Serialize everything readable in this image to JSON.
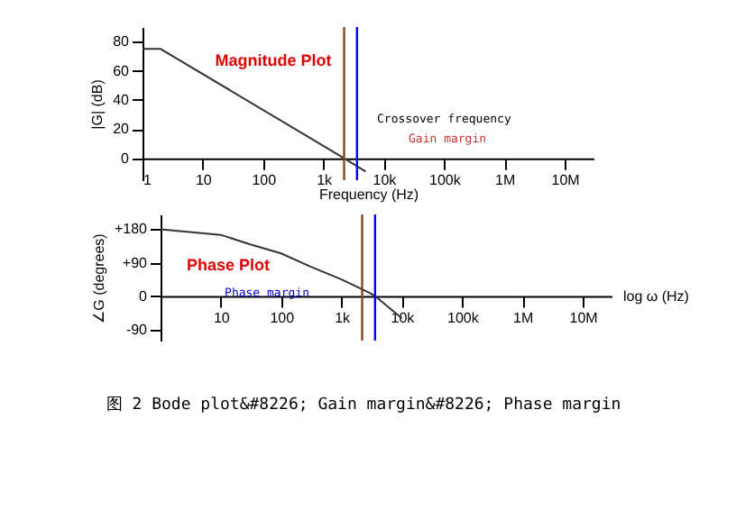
{
  "chart_data": [
    {
      "type": "line",
      "xlabel": "Frequency (Hz)",
      "ylabel": "|G| (dB)",
      "log": "x",
      "grid": false,
      "marker": "none",
      "x": [
        1,
        2,
        2200,
        5000
      ],
      "series": [
        {
          "color": "#333333",
          "values": [
            75,
            75,
            0,
            -9
          ]
        }
      ],
      "xlim": [
        1,
        30000000
      ],
      "xticks": [
        1,
        10,
        100,
        {
          "value": 1000,
          "label": "1k"
        },
        {
          "value": 10000,
          "label": "10k"
        },
        {
          "value": 100000,
          "label": "100k"
        },
        {
          "value": 1000000,
          "label": "1M"
        },
        {
          "value": 10000000,
          "label": "10M"
        }
      ],
      "ylim": [
        -15,
        90
      ],
      "yticks": [
        0,
        20,
        40,
        60,
        80
      ],
      "ref_lines": [
        {
          "axis": "x",
          "value": 2200,
          "color": "#8b4513"
        },
        {
          "axis": "x",
          "value": 3600,
          "color": "#0000ff"
        }
      ],
      "annotations": [
        "Magnitude Plot",
        "Crossover frequency",
        "Gain margin"
      ]
    },
    {
      "type": "line",
      "xlabel": "log ω (Hz)",
      "ylabel": "∠G (degrees)",
      "log": "x",
      "grid": false,
      "marker": "none",
      "x": [
        1,
        10,
        30,
        100,
        300,
        1000,
        3000,
        3600,
        10000
      ],
      "series": [
        {
          "color": "#333333",
          "values": [
            180,
            165,
            140,
            115,
            80,
            45,
            8,
            0,
            -60
          ]
        }
      ],
      "xlim": [
        1,
        30000000
      ],
      "xticks": [
        10,
        100,
        {
          "value": 1000,
          "label": "1k"
        },
        {
          "value": 10000,
          "label": "10k"
        },
        {
          "value": 100000,
          "label": "100k"
        },
        {
          "value": 1000000,
          "label": "1M"
        },
        {
          "value": 10000000,
          "label": "10M"
        }
      ],
      "ylim": [
        -120,
        220
      ],
      "yticks": [
        {
          "value": 180,
          "label": "+180"
        },
        {
          "value": 90,
          "label": "+90"
        },
        0,
        -90
      ],
      "ref_lines": [
        {
          "axis": "x",
          "value": 2200,
          "color": "#8b4513"
        },
        {
          "axis": "x",
          "value": 3600,
          "color": "#0000ff"
        }
      ],
      "annotations": [
        "Phase Plot",
        "Phase margin",
        "图 2  Bode plot&#8226; Gain margin&#8226; Phase margin"
      ]
    }
  ]
}
